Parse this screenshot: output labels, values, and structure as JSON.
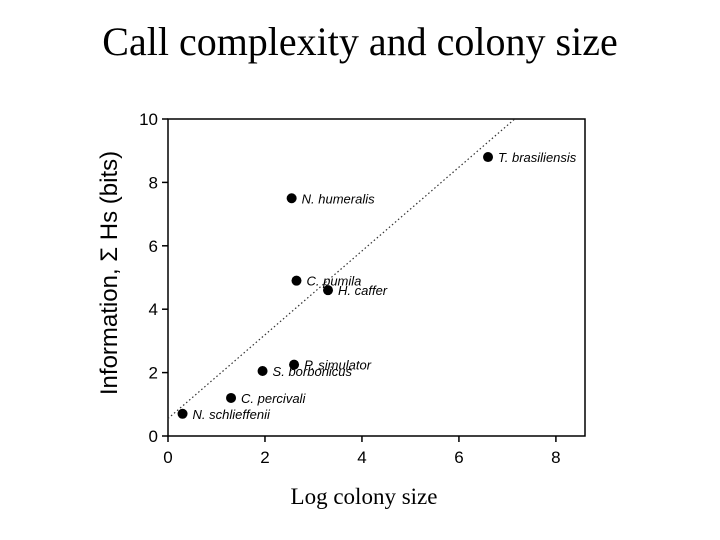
{
  "slide": {
    "title": "Call complexity and colony size",
    "x_caption": "Log colony size"
  },
  "chart_data": {
    "type": "scatter",
    "title": "",
    "xlabel": "",
    "ylabel": "Information, Σ Hs (bits)",
    "xlim": [
      0,
      8.6
    ],
    "ylim": [
      0,
      10
    ],
    "xticks": [
      0,
      2,
      4,
      6,
      8
    ],
    "yticks": [
      0,
      2,
      4,
      6,
      8,
      10
    ],
    "grid": false,
    "points": [
      {
        "label": "T. brasiliensis",
        "x": 6.6,
        "y": 8.8
      },
      {
        "label": "N. humeralis",
        "x": 2.55,
        "y": 7.5
      },
      {
        "label": "C. pumila",
        "x": 2.65,
        "y": 4.9
      },
      {
        "label": "H. caffer",
        "x": 3.3,
        "y": 4.6
      },
      {
        "label": "P. simulator",
        "x": 2.6,
        "y": 2.25
      },
      {
        "label": "S. borbonicus",
        "x": 1.95,
        "y": 2.05
      },
      {
        "label": "C. percivali",
        "x": 1.3,
        "y": 1.2
      },
      {
        "label": "N. schlieffenii",
        "x": 0.3,
        "y": 0.7
      }
    ],
    "trendline": {
      "style": "dotted",
      "x": [
        0,
        7.15
      ],
      "y": [
        0.55,
        10
      ]
    }
  }
}
